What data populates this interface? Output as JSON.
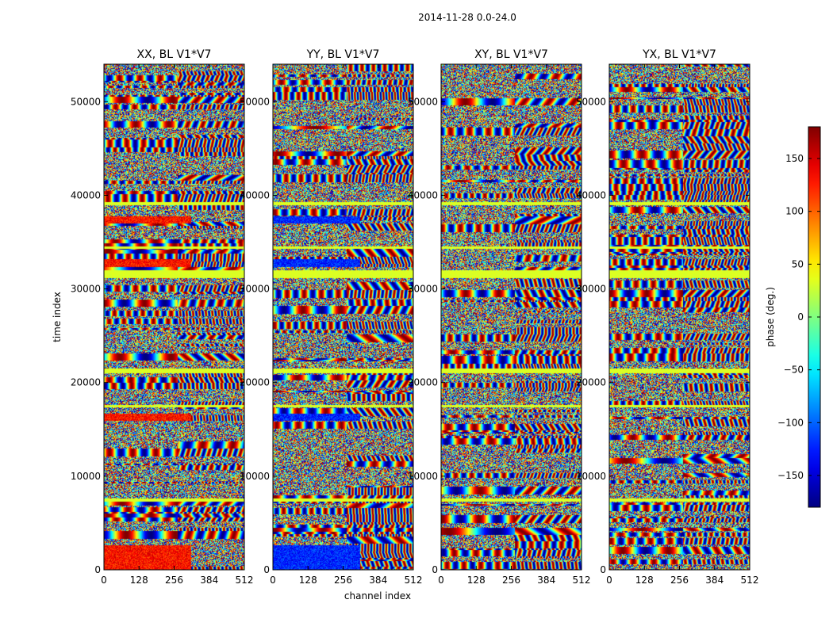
{
  "figure": {
    "suptitle": "2014-11-28 0.0-24.0",
    "xlabel": "channel index",
    "ylabel": "time index",
    "colorbar_label": "phase (deg.)"
  },
  "chart_data": {
    "type": "heatmap",
    "colormap": "jet",
    "title": "2014-11-28 0.0-24.0",
    "xlabel": "channel index",
    "ylabel": "time index",
    "xlim": [
      0,
      512
    ],
    "ylim": [
      0,
      54000
    ],
    "x_ticks": [
      0,
      128,
      256,
      384,
      512
    ],
    "y_ticks": [
      0,
      10000,
      20000,
      30000,
      40000,
      50000
    ],
    "panels": [
      {
        "title": "XX, BL V1*V7",
        "polarization": "XX"
      },
      {
        "title": "YY, BL V1*V7",
        "polarization": "YY"
      },
      {
        "title": "XY, BL V1*V7",
        "polarization": "XY"
      },
      {
        "title": "YX, BL V1*V7",
        "polarization": "YX"
      }
    ],
    "colorbar": {
      "label": "phase (deg.)",
      "range": [
        -180,
        180
      ],
      "ticks": [
        -150,
        -100,
        -50,
        0,
        50,
        100,
        150
      ],
      "tick_labels": [
        "−150",
        "−100",
        "−50",
        "0",
        "50",
        "100",
        "150"
      ]
    }
  }
}
